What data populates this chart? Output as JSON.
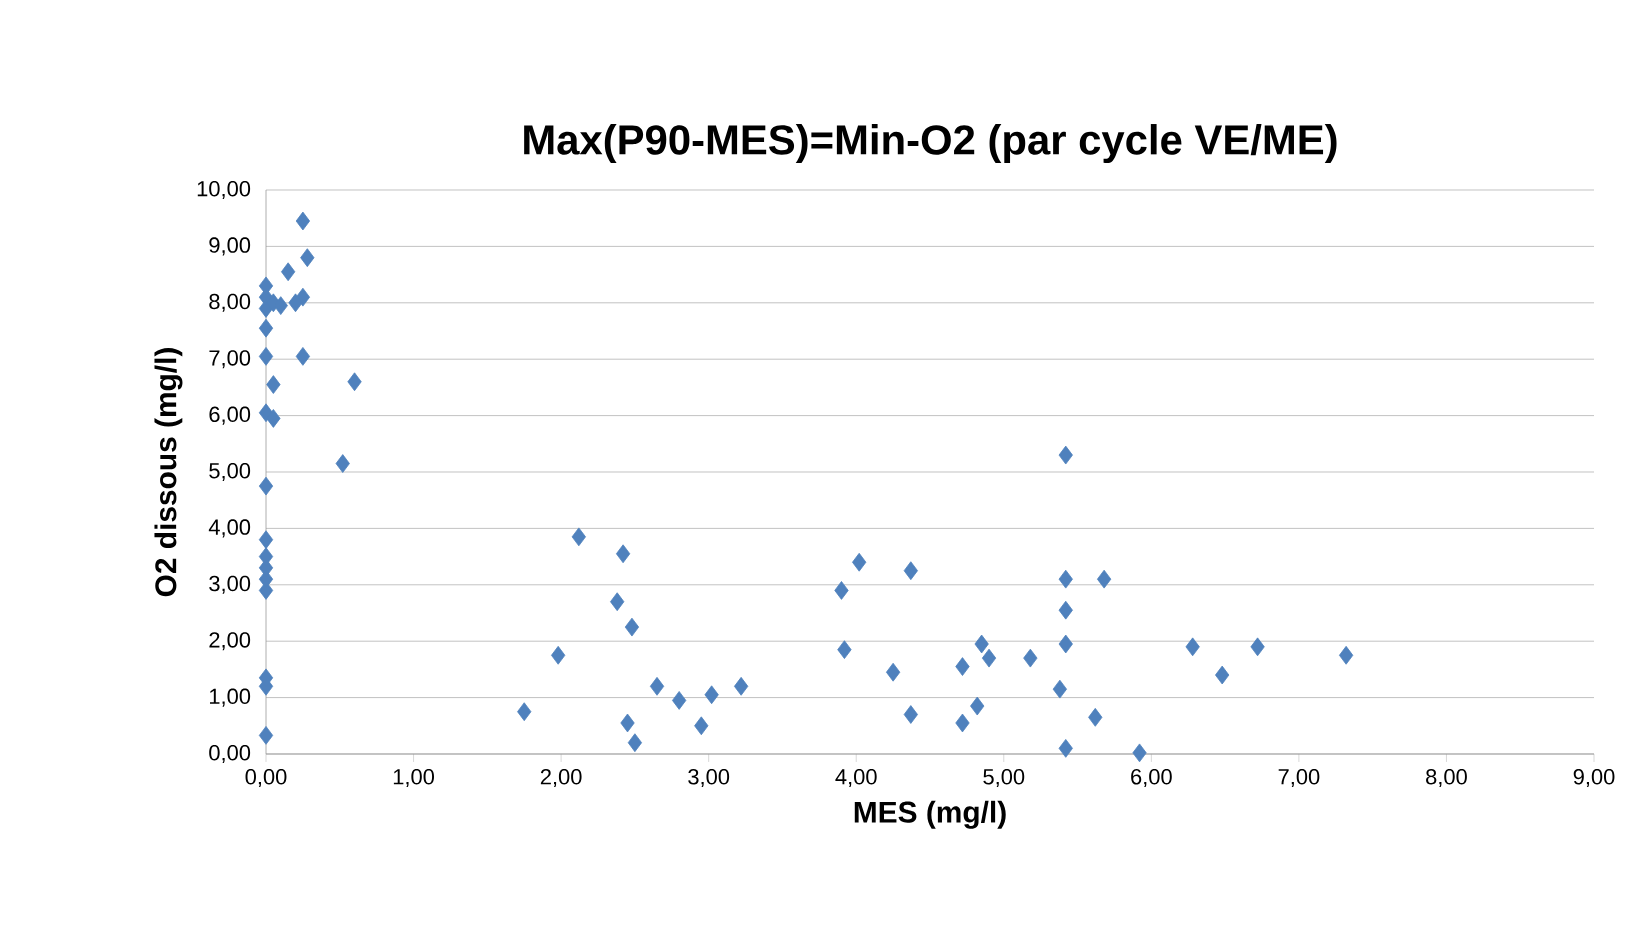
{
  "chart_data": {
    "type": "scatter",
    "title": "Max(P90-MES)=Min-O2 (par cycle VE/ME)",
    "xlabel": "MES (mg/l)",
    "ylabel": "O2 dissous (mg/l)",
    "x": [
      0,
      0,
      0,
      0,
      0,
      0,
      0,
      0,
      0,
      0,
      0.05,
      0.05,
      0,
      0,
      0,
      0,
      0,
      0.05,
      0.1,
      0.15,
      0.25,
      0.25,
      0.2,
      0.28,
      0.25,
      0.6,
      0.52,
      1.75,
      1.98,
      2.12,
      2.38,
      2.42,
      2.45,
      2.5,
      2.48,
      2.65,
      2.8,
      2.95,
      3.02,
      3.22,
      3.9,
      3.92,
      4.02,
      4.25,
      4.37,
      4.37,
      4.72,
      4.72,
      4.82,
      4.85,
      4.9,
      5.18,
      5.38,
      5.42,
      5.42,
      5.42,
      5.42,
      5.42,
      5.62,
      5.68,
      5.92,
      6.28,
      6.48,
      6.72,
      7.32
    ],
    "series": [
      {
        "color": "#4f81bd",
        "values": [
          0.33,
          1.2,
          1.35,
          2.9,
          3.1,
          3.3,
          3.5,
          3.8,
          4.75,
          6.05,
          5.95,
          6.55,
          7.05,
          7.55,
          7.9,
          8.1,
          8.3,
          8.0,
          7.95,
          8.55,
          7.05,
          8.1,
          8.0,
          8.8,
          9.45,
          6.6,
          5.15,
          0.75,
          1.75,
          3.85,
          2.7,
          3.55,
          0.55,
          0.2,
          2.25,
          1.2,
          0.95,
          0.5,
          1.05,
          1.2,
          2.9,
          1.85,
          3.4,
          1.45,
          3.25,
          0.7,
          1.55,
          0.55,
          0.85,
          1.95,
          1.7,
          1.7,
          1.15,
          3.1,
          2.55,
          1.95,
          0.1,
          5.3,
          0.65,
          3.1,
          0.02,
          1.9,
          1.4,
          1.9,
          1.75
        ]
      }
    ],
    "xlim": [
      0,
      9
    ],
    "ylim": [
      0,
      10
    ],
    "xticks": [
      {
        "value": 0,
        "label": "0,00"
      },
      {
        "value": 1,
        "label": "1,00"
      },
      {
        "value": 2,
        "label": "2,00"
      },
      {
        "value": 3,
        "label": "3,00"
      },
      {
        "value": 4,
        "label": "4,00"
      },
      {
        "value": 5,
        "label": "5,00"
      },
      {
        "value": 6,
        "label": "6,00"
      },
      {
        "value": 7,
        "label": "7,00"
      },
      {
        "value": 8,
        "label": "8,00"
      },
      {
        "value": 9,
        "label": "9,00"
      }
    ],
    "yticks": [
      {
        "value": 0,
        "label": "0,00"
      },
      {
        "value": 1,
        "label": "1,00"
      },
      {
        "value": 2,
        "label": "2,00"
      },
      {
        "value": 3,
        "label": "3,00"
      },
      {
        "value": 4,
        "label": "4,00"
      },
      {
        "value": 5,
        "label": "5,00"
      },
      {
        "value": 6,
        "label": "6,00"
      },
      {
        "value": 7,
        "label": "7,00"
      },
      {
        "value": 8,
        "label": "8,00"
      },
      {
        "value": 9,
        "label": "9,00"
      },
      {
        "value": 10,
        "label": "10,00"
      }
    ],
    "grid": "y",
    "marker": "diamond"
  }
}
